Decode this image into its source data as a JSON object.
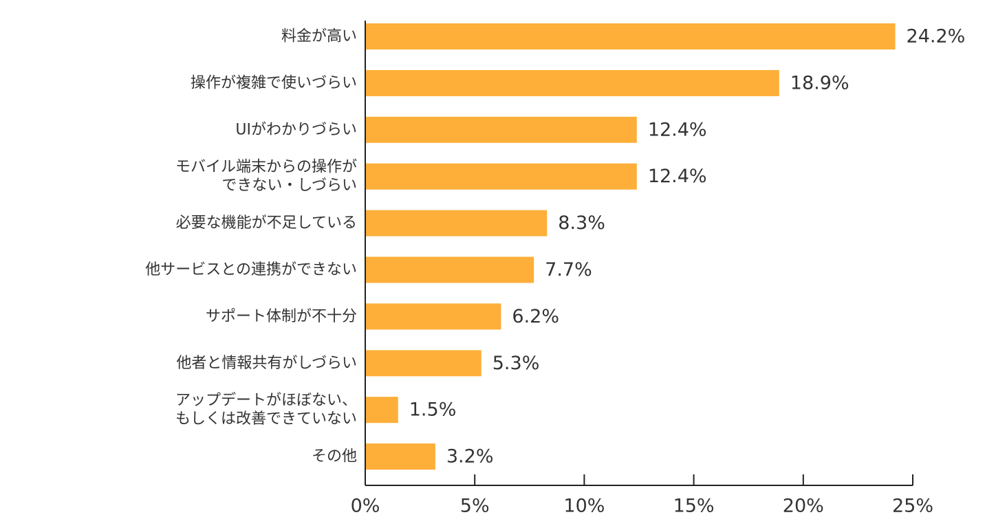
{
  "chart_data": {
    "type": "bar",
    "orientation": "horizontal",
    "title": "",
    "xlabel": "",
    "ylabel": "",
    "categories": [
      "料金が高い",
      "操作が複雑で使いづらい",
      "UIがわかりづらい",
      "モバイル端末からの操作が\nできない・しづらい",
      "必要な機能が不足している",
      "他サービスとの連携ができない",
      "サポート体制が不十分",
      "他者と情報共有がしづらい",
      "アップデートがほぼない、\nもしくは改善できていない",
      "その他"
    ],
    "values": [
      24.2,
      18.9,
      12.4,
      12.4,
      8.3,
      7.7,
      6.2,
      5.3,
      1.5,
      3.2
    ],
    "value_labels": [
      "24.2%",
      "18.9%",
      "12.4%",
      "12.4%",
      "8.3%",
      "7.7%",
      "6.2%",
      "5.3%",
      "1.5%",
      "3.2%"
    ],
    "xlim": [
      0,
      25
    ],
    "x_ticks": [
      0,
      5,
      10,
      15,
      20,
      25
    ],
    "x_tick_labels": [
      "0%",
      "5%",
      "10%",
      "15%",
      "20%",
      "25%"
    ],
    "bar_color": "#FDAF39",
    "grid": false,
    "legend": "none"
  }
}
